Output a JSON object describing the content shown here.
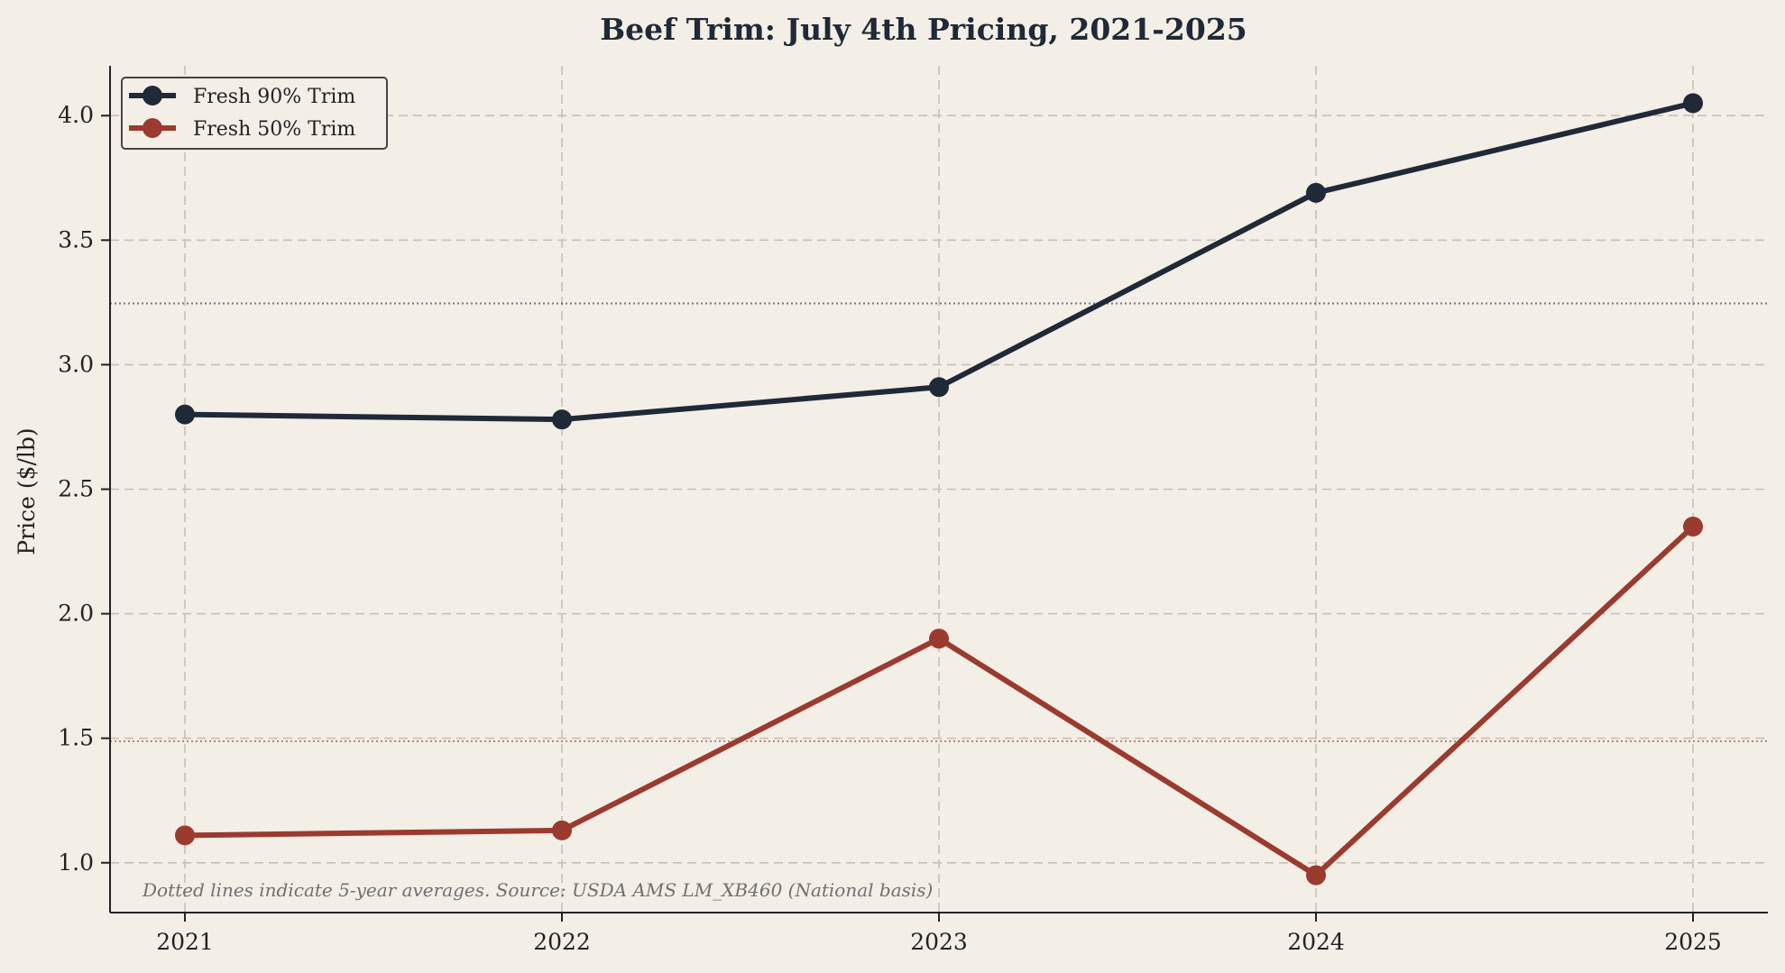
{
  "chart_data": {
    "type": "line",
    "title": "Beef Trim: July 4th Pricing, 2021-2025",
    "xlabel": "",
    "ylabel": "Price ($/lb)",
    "x": [
      "2021",
      "2022",
      "2023",
      "2024",
      "2025"
    ],
    "ylim": [
      0.8,
      4.2
    ],
    "yticks": [
      1.0,
      1.5,
      2.0,
      2.5,
      3.0,
      3.5,
      4.0
    ],
    "ytick_labels": [
      "1.0",
      "1.5",
      "2.0",
      "2.5",
      "3.0",
      "3.5",
      "4.0"
    ],
    "grid": true,
    "legend_position": "top-left",
    "series": [
      {
        "name": "Fresh 90% Trim",
        "color": "#1f2937",
        "values": [
          2.8,
          2.78,
          2.91,
          3.69,
          4.05
        ],
        "average": 3.246
      },
      {
        "name": "Fresh 50% Trim",
        "color": "#9b3a2e",
        "values": [
          1.11,
          1.13,
          1.9,
          0.95,
          2.35
        ],
        "average": 1.488
      }
    ],
    "annotation": "Dotted lines indicate 5-year averages. Source: USDA AMS LM_XB460 (National basis)"
  }
}
